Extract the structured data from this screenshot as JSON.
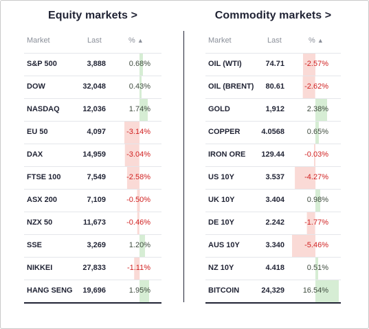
{
  "equity": {
    "title": "Equity markets >",
    "headers": {
      "market": "Market",
      "last": "Last",
      "pct": "%",
      "sort_arrow": "▲"
    },
    "rows": [
      {
        "name": "S&P 500",
        "last": "3,888",
        "pct": "0.68%",
        "value": 0.68
      },
      {
        "name": "DOW",
        "last": "32,048",
        "pct": "0.43%",
        "value": 0.43
      },
      {
        "name": "NASDAQ",
        "last": "12,036",
        "pct": "1.74%",
        "value": 1.74
      },
      {
        "name": "EU 50",
        "last": "4,097",
        "pct": "-3.14%",
        "value": -3.14
      },
      {
        "name": "DAX",
        "last": "14,959",
        "pct": "-3.04%",
        "value": -3.04
      },
      {
        "name": "FTSE 100",
        "last": "7,549",
        "pct": "-2.58%",
        "value": -2.58
      },
      {
        "name": "ASX 200",
        "last": "7,109",
        "pct": "-0.50%",
        "value": -0.5
      },
      {
        "name": "NZX 50",
        "last": "11,673",
        "pct": "-0.46%",
        "value": -0.46
      },
      {
        "name": "SSE",
        "last": "3,269",
        "pct": "1.20%",
        "value": 1.2
      },
      {
        "name": "NIKKEI",
        "last": "27,833",
        "pct": "-1.11%",
        "value": -1.11
      },
      {
        "name": "HANG SENG",
        "last": "19,696",
        "pct": "1.95%",
        "value": 1.95
      }
    ]
  },
  "commodity": {
    "title": "Commodity markets >",
    "headers": {
      "market": "Market",
      "last": "Last",
      "pct": "%",
      "sort_arrow": "▲"
    },
    "rows": [
      {
        "name": "OIL (WTI)",
        "last": "74.71",
        "pct": "-2.57%",
        "value": -2.57
      },
      {
        "name": "OIL (BRENT)",
        "last": "80.61",
        "pct": "-2.62%",
        "value": -2.62
      },
      {
        "name": "GOLD",
        "last": "1,912",
        "pct": "2.38%",
        "value": 2.38
      },
      {
        "name": "COPPER",
        "last": "4.0568",
        "pct": "0.65%",
        "value": 0.65
      },
      {
        "name": "IRON ORE",
        "last": "129.44",
        "pct": "-0.03%",
        "value": -0.03
      },
      {
        "name": "US 10Y",
        "last": "3.537",
        "pct": "-4.27%",
        "value": -4.27
      },
      {
        "name": "UK 10Y",
        "last": "3.404",
        "pct": "0.98%",
        "value": 0.98
      },
      {
        "name": "DE 10Y",
        "last": "2.242",
        "pct": "-1.77%",
        "value": -1.77
      },
      {
        "name": "AUS 10Y",
        "last": "3.340",
        "pct": "-5.46%",
        "value": -5.46
      },
      {
        "name": "NZ 10Y",
        "last": "4.418",
        "pct": "0.51%",
        "value": 0.51
      },
      {
        "name": "BITCOIN",
        "last": "24,329",
        "pct": "16.54%",
        "value": 16.54
      }
    ]
  },
  "colors": {
    "positive_bar": "#d6edd4",
    "negative_bar": "#fadad6",
    "negative_text": "#d02020"
  }
}
